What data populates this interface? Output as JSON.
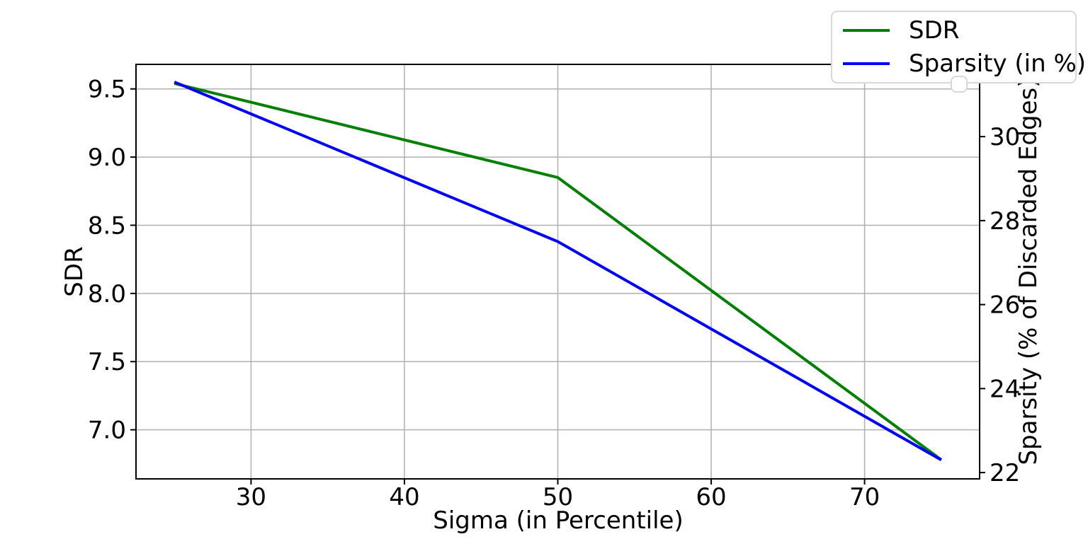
{
  "figure": {
    "background": "#ffffff"
  },
  "legend": {
    "items": [
      {
        "label": "SDR",
        "color": "#008000"
      },
      {
        "label": "Sparsity (in %)",
        "color": "#0000ff"
      }
    ]
  },
  "chart_data": {
    "type": "line",
    "title": "",
    "xlabel": "Sigma (in Percentile)",
    "ylabel_left": "SDR",
    "ylabel_right": "Sparsity (% of Discarded Edges)",
    "x": [
      25,
      50,
      75
    ],
    "series": [
      {
        "name": "SDR",
        "axis": "left",
        "color": "#008000",
        "values": [
          9.54,
          8.85,
          6.78
        ]
      },
      {
        "name": "Sparsity (in %)",
        "axis": "right",
        "color": "#0000ff",
        "values": [
          31.3,
          27.5,
          22.3
        ]
      }
    ],
    "xlim": [
      22.5,
      77.5
    ],
    "ylim_left": [
      6.64,
      9.68
    ],
    "ylim_right": [
      21.85,
      31.72
    ],
    "xticks": [
      30,
      40,
      50,
      60,
      70
    ],
    "xtick_labels": [
      "30",
      "40",
      "50",
      "60",
      "70"
    ],
    "yticks_left": [
      7.0,
      7.5,
      8.0,
      8.5,
      9.0,
      9.5
    ],
    "ytick_left_labels": [
      "7.0",
      "7.5",
      "8.0",
      "8.5",
      "9.0",
      "9.5"
    ],
    "yticks_right": [
      22,
      24,
      26,
      28,
      30
    ],
    "ytick_right_labels": [
      "22",
      "24",
      "26",
      "28",
      "30"
    ],
    "grid": true,
    "grid_color": "#b0b0b0",
    "axis_color": "#000000",
    "line_width": 4,
    "legend_position": "upper right"
  }
}
